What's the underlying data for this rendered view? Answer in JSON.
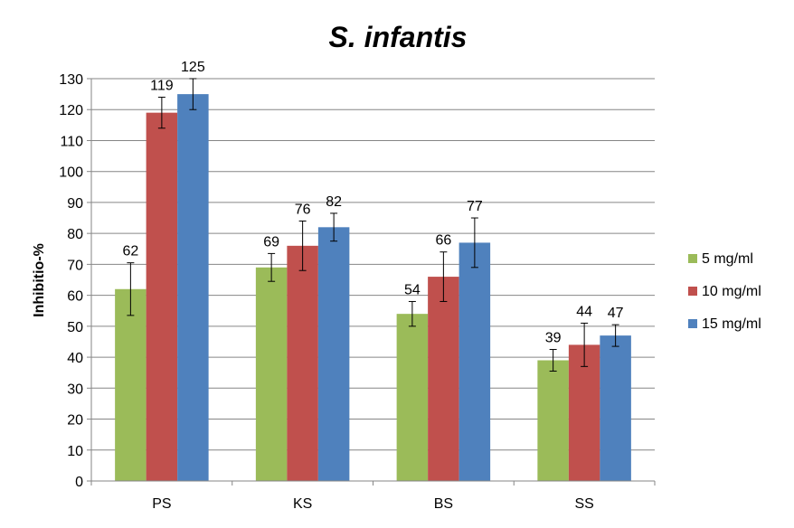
{
  "chart_data": {
    "type": "bar",
    "title": "S. infantis",
    "xlabel": "",
    "ylabel": "Inhibitio-%",
    "ylim": [
      0,
      130
    ],
    "ytick_step": 10,
    "grid": true,
    "legend_position": "right",
    "categories": [
      "PS",
      "KS",
      "BS",
      "SS"
    ],
    "series": [
      {
        "name": "5 mg/ml",
        "color": "#9BBB59",
        "values": [
          62,
          69,
          54,
          39
        ],
        "labels": [
          "62",
          "69",
          "54",
          "39"
        ],
        "errors": [
          8.5,
          4.5,
          4,
          3.5
        ]
      },
      {
        "name": "10 mg/ml",
        "color": "#C0504D",
        "values": [
          119,
          76,
          66,
          44
        ],
        "labels": [
          "119",
          "76",
          "66",
          "44"
        ],
        "errors": [
          5,
          8,
          8,
          7
        ]
      },
      {
        "name": "15 mg/ml",
        "color": "#4F81BD",
        "values": [
          125,
          82,
          77,
          47
        ],
        "labels": [
          "125",
          "82",
          "77",
          "47"
        ],
        "errors": [
          5,
          4.5,
          8,
          3.5
        ]
      }
    ]
  }
}
